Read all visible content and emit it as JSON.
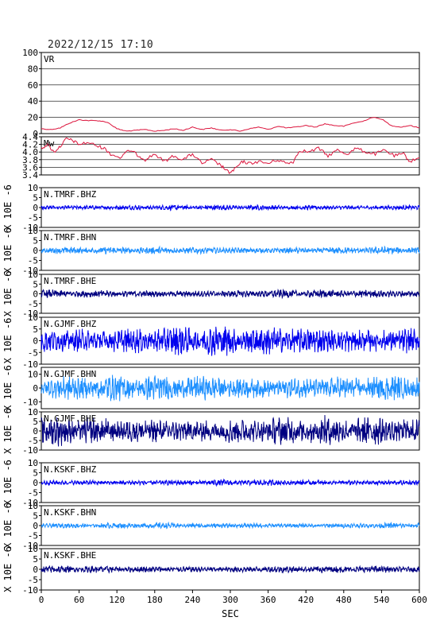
{
  "header": {
    "timestamp": "2022/12/15 17:10"
  },
  "chart_data": {
    "type": "line",
    "xlabel": "SEC",
    "xlim": [
      0,
      600
    ],
    "x_ticks": [
      0,
      60,
      120,
      180,
      240,
      300,
      360,
      420,
      480,
      540,
      600
    ],
    "panels": [
      {
        "label": "VR",
        "ylim": [
          0,
          100
        ],
        "yticks": [
          0,
          20,
          40,
          60,
          80,
          100
        ],
        "ylabel": "",
        "grid": true,
        "color": "#dc143c",
        "points": [
          [
            0,
            6
          ],
          [
            15,
            5
          ],
          [
            30,
            7
          ],
          [
            45,
            13
          ],
          [
            60,
            17
          ],
          [
            75,
            16
          ],
          [
            90,
            16
          ],
          [
            105,
            14
          ],
          [
            120,
            6
          ],
          [
            135,
            3
          ],
          [
            150,
            4
          ],
          [
            165,
            5
          ],
          [
            180,
            3
          ],
          [
            195,
            4
          ],
          [
            210,
            6
          ],
          [
            225,
            4
          ],
          [
            240,
            8
          ],
          [
            255,
            5
          ],
          [
            270,
            7
          ],
          [
            285,
            4
          ],
          [
            300,
            5
          ],
          [
            315,
            3
          ],
          [
            330,
            6
          ],
          [
            345,
            8
          ],
          [
            360,
            5
          ],
          [
            375,
            9
          ],
          [
            390,
            7
          ],
          [
            405,
            8
          ],
          [
            420,
            10
          ],
          [
            435,
            8
          ],
          [
            450,
            12
          ],
          [
            465,
            10
          ],
          [
            480,
            9
          ],
          [
            495,
            13
          ],
          [
            510,
            15
          ],
          [
            525,
            20
          ],
          [
            540,
            18
          ],
          [
            555,
            10
          ],
          [
            570,
            8
          ],
          [
            585,
            10
          ],
          [
            600,
            7
          ]
        ]
      },
      {
        "label": "Mw",
        "ylim": [
          3.4,
          4.4
        ],
        "yticks": [
          3.4,
          3.6,
          3.8,
          4.0,
          4.2,
          4.4
        ],
        "yticklabels": [
          "3.4",
          "3.6",
          "3.8",
          "4.0",
          "4.2",
          "4.4"
        ],
        "ylabel": "",
        "grid": true,
        "color": "#dc143c",
        "points": [
          [
            0,
            4.1
          ],
          [
            10,
            4.2
          ],
          [
            20,
            4.0
          ],
          [
            30,
            4.15
          ],
          [
            40,
            4.35
          ],
          [
            50,
            4.3
          ],
          [
            60,
            4.2
          ],
          [
            75,
            4.25
          ],
          [
            90,
            4.15
          ],
          [
            100,
            4.1
          ],
          [
            110,
            3.95
          ],
          [
            125,
            3.85
          ],
          [
            140,
            4.05
          ],
          [
            155,
            3.9
          ],
          [
            165,
            3.8
          ],
          [
            180,
            3.95
          ],
          [
            195,
            3.75
          ],
          [
            210,
            3.9
          ],
          [
            225,
            3.8
          ],
          [
            240,
            3.95
          ],
          [
            255,
            3.7
          ],
          [
            270,
            3.8
          ],
          [
            285,
            3.65
          ],
          [
            295,
            3.5
          ],
          [
            300,
            3.45
          ],
          [
            310,
            3.6
          ],
          [
            320,
            3.75
          ],
          [
            330,
            3.7
          ],
          [
            345,
            3.75
          ],
          [
            360,
            3.7
          ],
          [
            375,
            3.8
          ],
          [
            390,
            3.7
          ],
          [
            400,
            3.75
          ],
          [
            410,
            4.05
          ],
          [
            425,
            4.0
          ],
          [
            440,
            4.1
          ],
          [
            455,
            3.9
          ],
          [
            470,
            4.05
          ],
          [
            485,
            3.95
          ],
          [
            500,
            4.1
          ],
          [
            515,
            4.0
          ],
          [
            530,
            3.95
          ],
          [
            545,
            4.05
          ],
          [
            560,
            3.9
          ],
          [
            575,
            3.95
          ],
          [
            585,
            3.75
          ],
          [
            600,
            3.85
          ]
        ]
      },
      {
        "label": "N.TMRF.BHZ",
        "ylim": [
          -10,
          10
        ],
        "yticks": [
          -10,
          -5,
          0,
          5,
          10
        ],
        "ylabel": "X 10E -6",
        "color": "#0000ee",
        "amplitude": 1.2
      },
      {
        "label": "N.TMRF.BHN",
        "ylim": [
          -10,
          10
        ],
        "yticks": [
          -10,
          -5,
          0,
          5,
          10
        ],
        "ylabel": "X 10E -6",
        "color": "#1e90ff",
        "amplitude": 1.6
      },
      {
        "label": "N.TMRF.BHE",
        "ylim": [
          -10,
          10
        ],
        "yticks": [
          -10,
          -5,
          0,
          5,
          10
        ],
        "ylabel": "X 10E -6",
        "color": "#000080",
        "amplitude": 1.8
      },
      {
        "label": "N.GJMF.BHZ",
        "ylim": [
          -10,
          10
        ],
        "yticks": [
          -10,
          -5,
          0,
          5,
          10
        ],
        "ylabel": "X 10E -6",
        "color": "#0000ee",
        "amplitude": 5.5
      },
      {
        "label": "N.GJMF.BHN",
        "ylim": [
          -15,
          15
        ],
        "yticks": [
          -10,
          0,
          10
        ],
        "ylabel": "X 10E -6",
        "color": "#1e90ff",
        "amplitude": 8
      },
      {
        "label": "N.GJMF.BHE",
        "ylim": [
          -10,
          10
        ],
        "yticks": [
          -10,
          -5,
          0,
          5,
          10
        ],
        "ylabel": "X 10E -6",
        "color": "#000080",
        "amplitude": 6.5
      },
      {
        "label": "N.KSKF.BHZ",
        "ylim": [
          -10,
          10
        ],
        "yticks": [
          -10,
          -5,
          0,
          5,
          10
        ],
        "ylabel": "X 10E -6",
        "color": "#0000ee",
        "amplitude": 1.3
      },
      {
        "label": "N.KSKF.BHN",
        "ylim": [
          -10,
          10
        ],
        "yticks": [
          -10,
          -5,
          0,
          5,
          10
        ],
        "ylabel": "X 10E -6",
        "color": "#1e90ff",
        "amplitude": 1.2
      },
      {
        "label": "N.KSKF.BHE",
        "ylim": [
          -10,
          10
        ],
        "yticks": [
          -10,
          -5,
          0,
          5,
          10
        ],
        "ylabel": "X 10E -6",
        "color": "#000080",
        "amplitude": 1.5
      }
    ]
  }
}
